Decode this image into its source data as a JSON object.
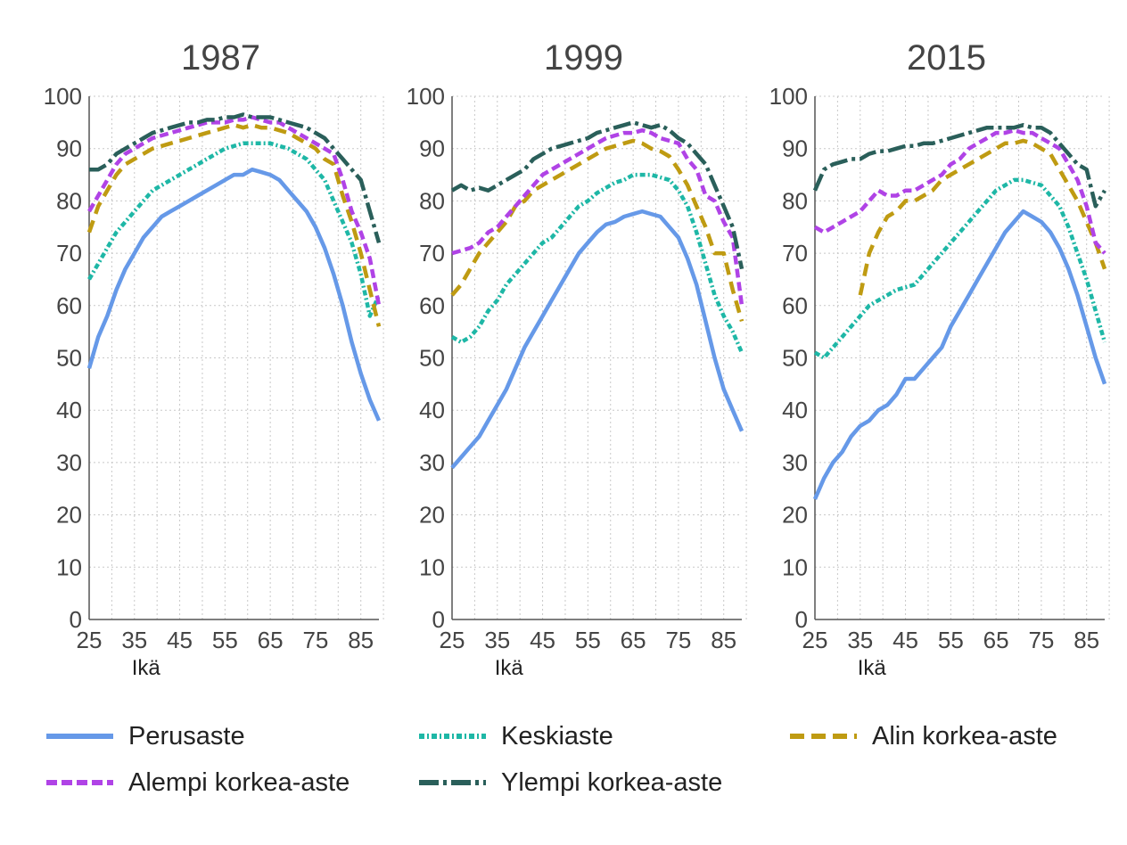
{
  "colors": {
    "Perusaste": "#6699E8",
    "Keskiaste": "#1EB7A6",
    "Alin korkea-aste": "#BF9B12",
    "Alempi korkea-aste": "#B043E6",
    "Ylempi korkea-aste": "#2A5F5A"
  },
  "legend": {
    "items": [
      {
        "label": "Perusaste",
        "style": "solid"
      },
      {
        "label": "Keskiaste",
        "style": "dashdot"
      },
      {
        "label": "Alin korkea-aste",
        "style": "dash"
      },
      {
        "label": "Alempi korkea-aste",
        "style": "dash"
      },
      {
        "label": "Ylempi korkea-aste",
        "style": "longdashdot"
      }
    ]
  },
  "chart_data": [
    {
      "type": "line",
      "title": "1987",
      "xlabel": "Ikä",
      "ylabel": "",
      "xlim": [
        25,
        89
      ],
      "ylim": [
        0,
        100
      ],
      "xticks": [
        25,
        35,
        45,
        55,
        65,
        75,
        85
      ],
      "yticks": [
        0,
        10,
        20,
        30,
        40,
        50,
        60,
        70,
        80,
        90,
        100
      ],
      "grid": true,
      "series": [
        {
          "name": "Perusaste",
          "x": [
            25,
            27,
            29,
            31,
            33,
            35,
            37,
            39,
            41,
            43,
            45,
            47,
            49,
            51,
            53,
            55,
            57,
            59,
            61,
            63,
            65,
            67,
            69,
            71,
            73,
            75,
            77,
            79,
            81,
            83,
            85,
            87,
            89
          ],
          "values": [
            48,
            54,
            58,
            63,
            67,
            70,
            73,
            75,
            77,
            78,
            79,
            80,
            81,
            82,
            83,
            84,
            85,
            85,
            86,
            85.5,
            85,
            84,
            82,
            80,
            78,
            75,
            71,
            66,
            60,
            53,
            47,
            42,
            38
          ]
        },
        {
          "name": "Keskiaste",
          "x": [
            25,
            27,
            29,
            31,
            33,
            35,
            37,
            39,
            41,
            43,
            45,
            47,
            49,
            51,
            53,
            55,
            57,
            59,
            61,
            63,
            65,
            67,
            69,
            71,
            73,
            75,
            77,
            79,
            81,
            83,
            85,
            87,
            89
          ],
          "values": [
            65,
            68,
            71,
            74,
            76,
            78,
            80,
            82,
            83,
            84,
            85,
            86,
            87,
            88,
            89,
            90,
            90.5,
            91,
            91,
            91,
            91,
            90.5,
            90,
            89,
            88,
            86,
            84,
            80,
            76,
            72,
            66,
            58,
            62
          ]
        },
        {
          "name": "Alin korkea-aste",
          "x": [
            25,
            27,
            29,
            31,
            33,
            35,
            37,
            39,
            41,
            43,
            45,
            47,
            49,
            51,
            53,
            55,
            57,
            59,
            61,
            63,
            65,
            67,
            69,
            71,
            73,
            75,
            77,
            79,
            81,
            83,
            85,
            87,
            89
          ],
          "values": [
            74,
            79,
            82,
            85,
            87,
            88,
            89,
            90,
            90.5,
            91,
            91.5,
            92,
            92.5,
            93,
            93.5,
            94,
            94.5,
            94,
            94.5,
            94,
            94,
            93.5,
            93,
            92,
            91,
            90,
            88,
            87,
            81,
            76,
            70,
            63,
            56
          ]
        },
        {
          "name": "Alempi korkea-aste",
          "x": [
            25,
            27,
            29,
            31,
            33,
            35,
            37,
            39,
            41,
            43,
            45,
            47,
            49,
            51,
            53,
            55,
            57,
            59,
            61,
            63,
            65,
            67,
            69,
            71,
            73,
            75,
            77,
            79,
            81,
            83,
            85,
            87,
            89
          ],
          "values": [
            78,
            81,
            84,
            87,
            89,
            90,
            91,
            92,
            92.5,
            93,
            93.5,
            94,
            94.5,
            95,
            95,
            95,
            95.5,
            95.5,
            96,
            95.5,
            95,
            95,
            94,
            93,
            92,
            91,
            90,
            89,
            84,
            78,
            74,
            69,
            60
          ]
        },
        {
          "name": "Ylempi korkea-aste",
          "x": [
            25,
            27,
            29,
            31,
            33,
            35,
            37,
            39,
            41,
            43,
            45,
            47,
            49,
            51,
            53,
            55,
            57,
            59,
            61,
            63,
            65,
            67,
            69,
            71,
            73,
            75,
            77,
            79,
            81,
            83,
            85,
            87,
            89
          ],
          "values": [
            86,
            86,
            87,
            89,
            90,
            91,
            92,
            93,
            93.5,
            94,
            94.5,
            95,
            95,
            95.5,
            95.5,
            96,
            96,
            96.5,
            96,
            96,
            96,
            95.5,
            95,
            94.5,
            94,
            93,
            92,
            90,
            88,
            86,
            84,
            78,
            72
          ]
        }
      ]
    },
    {
      "type": "line",
      "title": "1999",
      "xlabel": "Ikä",
      "ylabel": "",
      "xlim": [
        25,
        89
      ],
      "ylim": [
        0,
        100
      ],
      "xticks": [
        25,
        35,
        45,
        55,
        65,
        75,
        85
      ],
      "yticks": [
        0,
        10,
        20,
        30,
        40,
        50,
        60,
        70,
        80,
        90,
        100
      ],
      "grid": true,
      "series": [
        {
          "name": "Perusaste",
          "x": [
            25,
            27,
            29,
            31,
            33,
            35,
            37,
            39,
            41,
            43,
            45,
            47,
            49,
            51,
            53,
            55,
            57,
            59,
            61,
            63,
            65,
            67,
            69,
            71,
            73,
            75,
            77,
            79,
            81,
            83,
            85,
            87,
            89
          ],
          "values": [
            29,
            31,
            33,
            35,
            38,
            41,
            44,
            48,
            52,
            55,
            58,
            61,
            64,
            67,
            70,
            72,
            74,
            75.5,
            76,
            77,
            77.5,
            78,
            77.5,
            77,
            75,
            73,
            69,
            64,
            57,
            50,
            44,
            40,
            36
          ]
        },
        {
          "name": "Keskiaste",
          "x": [
            25,
            27,
            29,
            31,
            33,
            35,
            37,
            39,
            41,
            43,
            45,
            47,
            49,
            51,
            53,
            55,
            57,
            59,
            61,
            63,
            65,
            67,
            69,
            71,
            73,
            75,
            77,
            79,
            81,
            83,
            85,
            87,
            89
          ],
          "values": [
            54,
            53,
            54,
            56,
            59,
            61,
            64,
            66,
            68,
            70,
            72,
            73,
            75,
            77,
            79,
            80,
            81.5,
            82.5,
            83.5,
            84,
            85,
            85,
            85,
            84.5,
            84,
            82,
            79,
            74,
            68,
            62,
            58,
            55,
            51
          ]
        },
        {
          "name": "Alin korkea-aste",
          "x": [
            25,
            27,
            29,
            31,
            33,
            35,
            37,
            39,
            41,
            43,
            45,
            47,
            49,
            51,
            53,
            55,
            57,
            59,
            61,
            63,
            65,
            67,
            69,
            71,
            73,
            75,
            77,
            79,
            81,
            83,
            85,
            87,
            89
          ],
          "values": [
            62,
            64,
            67,
            70,
            72,
            74,
            76,
            79,
            80,
            82,
            83,
            84,
            85,
            86,
            87,
            88,
            89,
            90,
            90.5,
            91,
            91.5,
            91,
            90,
            89.5,
            88.5,
            86,
            83,
            79,
            75,
            70,
            70,
            63,
            57
          ]
        },
        {
          "name": "Alempi korkea-aste",
          "x": [
            25,
            27,
            29,
            31,
            33,
            35,
            37,
            39,
            41,
            43,
            45,
            47,
            49,
            51,
            53,
            55,
            57,
            59,
            61,
            63,
            65,
            67,
            69,
            71,
            73,
            75,
            77,
            79,
            81,
            83,
            85,
            87,
            89
          ],
          "values": [
            70,
            70.5,
            71,
            72,
            74,
            75,
            77,
            79,
            81,
            83,
            85,
            86,
            87,
            88,
            89,
            90,
            91,
            92,
            92.5,
            93,
            93,
            93.5,
            93,
            92,
            91.5,
            91,
            88,
            86,
            81,
            80,
            76,
            73,
            60
          ]
        },
        {
          "name": "Ylempi korkea-aste",
          "x": [
            25,
            27,
            29,
            31,
            33,
            35,
            37,
            39,
            41,
            43,
            45,
            47,
            49,
            51,
            53,
            55,
            57,
            59,
            61,
            63,
            65,
            67,
            69,
            71,
            73,
            75,
            77,
            79,
            81,
            83,
            85,
            87,
            89
          ],
          "values": [
            82,
            83,
            82,
            82.5,
            82,
            83,
            84,
            85,
            86,
            88,
            89,
            90,
            90.5,
            91,
            91.5,
            92,
            93,
            93.5,
            94,
            94.5,
            95,
            94.5,
            94,
            94.5,
            93.5,
            92,
            91,
            89,
            87,
            83,
            79,
            75,
            67
          ]
        }
      ]
    },
    {
      "type": "line",
      "title": "2015",
      "xlabel": "Ikä",
      "ylabel": "",
      "xlim": [
        25,
        89
      ],
      "ylim": [
        0,
        100
      ],
      "xticks": [
        25,
        35,
        45,
        55,
        65,
        75,
        85
      ],
      "yticks": [
        0,
        10,
        20,
        30,
        40,
        50,
        60,
        70,
        80,
        90,
        100
      ],
      "grid": true,
      "series": [
        {
          "name": "Perusaste",
          "x": [
            25,
            27,
            29,
            31,
            33,
            35,
            37,
            39,
            41,
            43,
            45,
            47,
            49,
            51,
            53,
            55,
            57,
            59,
            61,
            63,
            65,
            67,
            69,
            71,
            73,
            75,
            77,
            79,
            81,
            83,
            85,
            87,
            89
          ],
          "values": [
            23,
            27,
            30,
            32,
            35,
            37,
            38,
            40,
            41,
            43,
            46,
            46,
            48,
            50,
            52,
            56,
            59,
            62,
            65,
            68,
            71,
            74,
            76,
            78,
            77,
            76,
            74,
            71,
            67,
            62,
            56,
            50,
            45
          ]
        },
        {
          "name": "Keskiaste",
          "x": [
            25,
            27,
            29,
            31,
            33,
            35,
            37,
            39,
            41,
            43,
            45,
            47,
            49,
            51,
            53,
            55,
            57,
            59,
            61,
            63,
            65,
            67,
            69,
            71,
            73,
            75,
            77,
            79,
            81,
            83,
            85,
            87,
            89
          ],
          "values": [
            51,
            50,
            52,
            54,
            56,
            58,
            60,
            61,
            62,
            63,
            63.5,
            64,
            66,
            68,
            70,
            72,
            74,
            76,
            78,
            80,
            82,
            83,
            84,
            84,
            83.5,
            83,
            81,
            79,
            75,
            70,
            65,
            59,
            53
          ]
        },
        {
          "name": "Alin korkea-aste",
          "x": [
            25,
            27,
            29,
            31,
            33,
            35,
            37,
            39,
            41,
            43,
            45,
            47,
            49,
            51,
            53,
            55,
            57,
            59,
            61,
            63,
            65,
            67,
            69,
            71,
            73,
            75,
            77,
            79,
            81,
            83,
            85,
            87,
            89
          ],
          "values": [
            null,
            null,
            null,
            null,
            null,
            62,
            70,
            74,
            77,
            78,
            80,
            80,
            81,
            82,
            84,
            85,
            86,
            87,
            88,
            89,
            90,
            91,
            91,
            91.5,
            91,
            90,
            89,
            86,
            83,
            80,
            76,
            72,
            67
          ]
        },
        {
          "name": "Alempi korkea-aste",
          "x": [
            25,
            27,
            29,
            31,
            33,
            35,
            37,
            39,
            41,
            43,
            45,
            47,
            49,
            51,
            53,
            55,
            57,
            59,
            61,
            63,
            65,
            67,
            69,
            71,
            73,
            75,
            77,
            79,
            81,
            83,
            85,
            87,
            89
          ],
          "values": [
            75,
            74,
            75,
            76,
            77,
            78,
            80,
            82,
            81,
            81,
            82,
            82,
            83,
            84,
            85,
            87,
            88,
            90,
            91,
            92,
            93,
            93,
            93.5,
            93,
            93,
            92,
            91,
            90,
            87,
            84,
            79,
            72,
            70
          ]
        },
        {
          "name": "Ylempi korkea-aste",
          "x": [
            25,
            27,
            29,
            31,
            33,
            35,
            37,
            39,
            41,
            43,
            45,
            47,
            49,
            51,
            53,
            55,
            57,
            59,
            61,
            63,
            65,
            67,
            69,
            71,
            73,
            75,
            77,
            79,
            81,
            83,
            85,
            87,
            89
          ],
          "values": [
            82,
            86,
            87,
            87.5,
            88,
            88,
            89,
            89.5,
            89.5,
            90,
            90.5,
            90.5,
            91,
            91,
            91.5,
            92,
            92.5,
            93,
            93.5,
            94,
            94,
            94,
            94,
            94.5,
            94,
            94,
            93,
            91,
            89,
            87,
            86,
            79,
            82
          ]
        }
      ]
    }
  ]
}
